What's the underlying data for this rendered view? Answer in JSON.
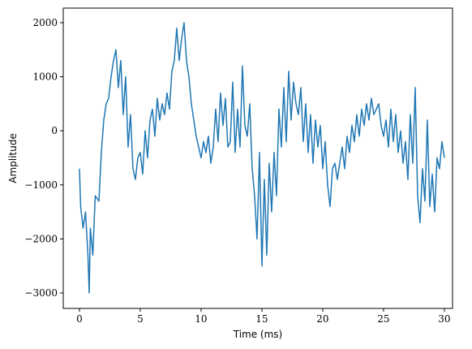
{
  "chart_data": {
    "type": "line",
    "xlabel": "Time (ms)",
    "ylabel": "Amplitude",
    "xlim": [
      -1.33,
      30.67
    ],
    "ylim": [
      -3285,
      2270
    ],
    "xticks": [
      0,
      5,
      10,
      15,
      20,
      25,
      30
    ],
    "yticks": [
      {
        "value": -3000,
        "label": "−3000"
      },
      {
        "value": -2000,
        "label": "−2000"
      },
      {
        "value": -1000,
        "label": "−1000"
      },
      0,
      1000,
      2000
    ],
    "x": [
      0,
      0.1,
      0.3,
      0.5,
      0.7,
      0.8,
      0.9,
      1.1,
      1.3,
      1.6,
      1.8,
      2.0,
      2.2,
      2.4,
      2.6,
      2.8,
      3.0,
      3.2,
      3.4,
      3.6,
      3.8,
      4.0,
      4.2,
      4.4,
      4.6,
      4.8,
      5.0,
      5.2,
      5.4,
      5.6,
      5.8,
      6.0,
      6.2,
      6.4,
      6.6,
      6.8,
      7.0,
      7.2,
      7.4,
      7.6,
      7.8,
      8.0,
      8.2,
      8.4,
      8.6,
      8.8,
      9.0,
      9.2,
      9.4,
      9.6,
      9.8,
      10.0,
      10.2,
      10.4,
      10.6,
      10.8,
      11.0,
      11.2,
      11.4,
      11.6,
      11.8,
      12.0,
      12.2,
      12.4,
      12.6,
      12.8,
      13.0,
      13.2,
      13.4,
      13.6,
      13.8,
      14.0,
      14.2,
      14.4,
      14.6,
      14.8,
      15.0,
      15.2,
      15.4,
      15.6,
      15.8,
      16.0,
      16.2,
      16.4,
      16.6,
      16.8,
      17.0,
      17.2,
      17.4,
      17.6,
      17.8,
      18.0,
      18.2,
      18.4,
      18.6,
      18.8,
      19.0,
      19.2,
      19.4,
      19.6,
      19.8,
      20.0,
      20.2,
      20.4,
      20.6,
      20.8,
      21.0,
      21.2,
      21.4,
      21.6,
      21.8,
      22.0,
      22.2,
      22.4,
      22.6,
      22.8,
      23.0,
      23.2,
      23.4,
      23.6,
      23.8,
      24.0,
      24.2,
      24.4,
      24.6,
      24.8,
      25.0,
      25.2,
      25.4,
      25.6,
      25.8,
      26.0,
      26.2,
      26.4,
      26.6,
      26.8,
      27.0,
      27.2,
      27.4,
      27.6,
      27.8,
      28.0,
      28.2,
      28.4,
      28.6,
      28.8,
      29.0,
      29.2,
      29.4,
      29.6,
      29.8,
      30.0
    ],
    "series": [
      {
        "color": "#1f77b4",
        "values": [
          -700,
          -1400,
          -1800,
          -1500,
          -2300,
          -3000,
          -1800,
          -2300,
          -1200,
          -1300,
          -400,
          200,
          500,
          600,
          1000,
          1300,
          1500,
          800,
          1300,
          300,
          1000,
          -300,
          300,
          -700,
          -900,
          -500,
          -400,
          -800,
          0,
          -500,
          200,
          400,
          -100,
          600,
          200,
          500,
          300,
          700,
          400,
          1100,
          1300,
          1900,
          1300,
          1700,
          2000,
          1300,
          1000,
          500,
          200,
          -100,
          -300,
          -500,
          -200,
          -400,
          -100,
          -600,
          -300,
          400,
          -200,
          700,
          100,
          600,
          -300,
          -200,
          900,
          -400,
          400,
          -300,
          1200,
          100,
          -100,
          500,
          -700,
          -1200,
          -2000,
          -400,
          -2500,
          -900,
          -2300,
          -600,
          -1500,
          -400,
          -1200,
          400,
          -300,
          800,
          -200,
          1100,
          200,
          900,
          500,
          300,
          800,
          -200,
          500,
          -400,
          300,
          -600,
          200,
          -300,
          100,
          -700,
          -200,
          -1000,
          -1400,
          -700,
          -600,
          -900,
          -600,
          -300,
          -700,
          -100,
          -400,
          100,
          -200,
          300,
          -100,
          400,
          100,
          500,
          200,
          600,
          300,
          400,
          500,
          100,
          -100,
          200,
          -300,
          400,
          -200,
          300,
          -400,
          0,
          -600,
          -200,
          -900,
          300,
          -600,
          800,
          -1200,
          -1700,
          -700,
          -1300,
          200,
          -1400,
          -800,
          -1500,
          -500,
          -700,
          -200,
          -500
        ]
      }
    ]
  }
}
